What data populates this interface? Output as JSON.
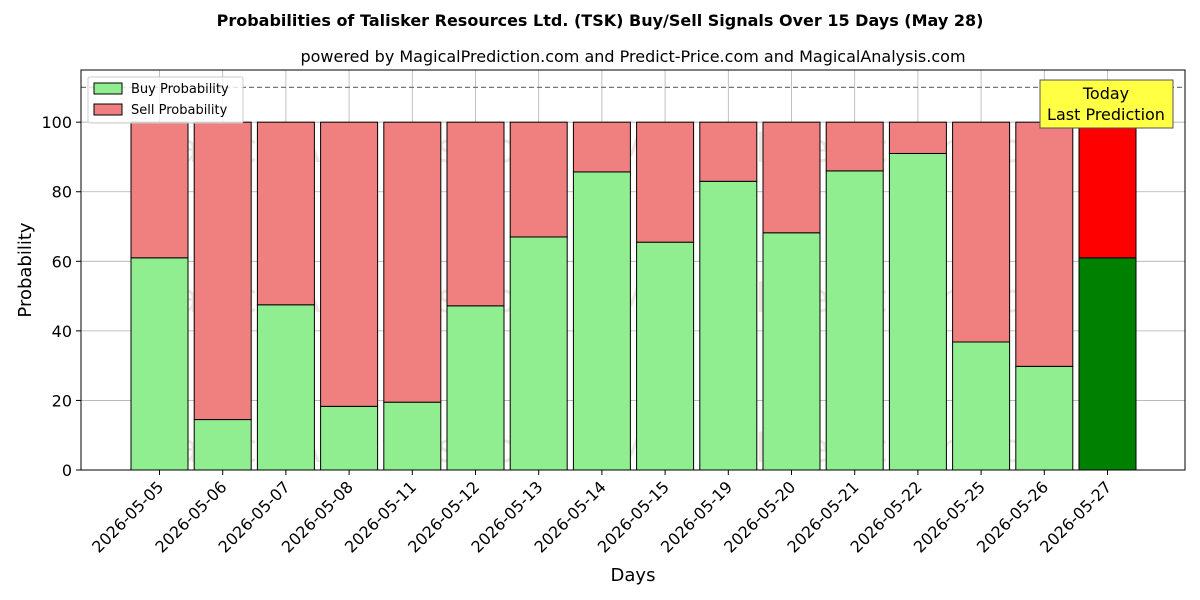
{
  "chart_data": {
    "type": "bar",
    "stacked": true,
    "title": "Probabilities of Talisker Resources Ltd. (TSK) Buy/Sell Signals Over 15 Days (May 28)",
    "subtitle": "powered by MagicalPrediction.com and Predict-Price.com and MagicalAnalysis.com",
    "xlabel": "Days",
    "ylabel": "Probability",
    "ylim": [
      0,
      115
    ],
    "yticks": [
      0,
      20,
      40,
      60,
      80,
      100
    ],
    "grid": true,
    "reference_line": 110,
    "legend_position": "top-left",
    "categories": [
      "2026-05-05",
      "2026-05-06",
      "2026-05-07",
      "2026-05-08",
      "2026-05-11",
      "2026-05-12",
      "2026-05-13",
      "2026-05-14",
      "2026-05-15",
      "2026-05-19",
      "2026-05-20",
      "2026-05-21",
      "2026-05-22",
      "2026-05-25",
      "2026-05-26",
      "2026-05-27"
    ],
    "series": [
      {
        "name": "Buy Probability",
        "color": "#90EE90",
        "values": [
          61,
          14.5,
          47.5,
          18.3,
          19.5,
          47.2,
          67,
          85.7,
          65.5,
          83,
          68.2,
          86,
          91,
          36.8,
          29.8,
          61
        ]
      },
      {
        "name": "Sell Probability",
        "color": "#F08080",
        "values": [
          39,
          85.5,
          52.5,
          81.7,
          80.5,
          52.8,
          33,
          14.3,
          34.5,
          17,
          31.8,
          14,
          9,
          63.2,
          70.2,
          39
        ]
      }
    ],
    "highlight": {
      "index": 15,
      "buy_color": "#008000",
      "sell_color": "#FF0000"
    },
    "annotation": {
      "lines": [
        "Today",
        "Last Prediction"
      ],
      "background": "#FFFF44"
    },
    "watermarks": [
      "MagicalAnalysis.com",
      "MagicalPrediction.com"
    ]
  }
}
